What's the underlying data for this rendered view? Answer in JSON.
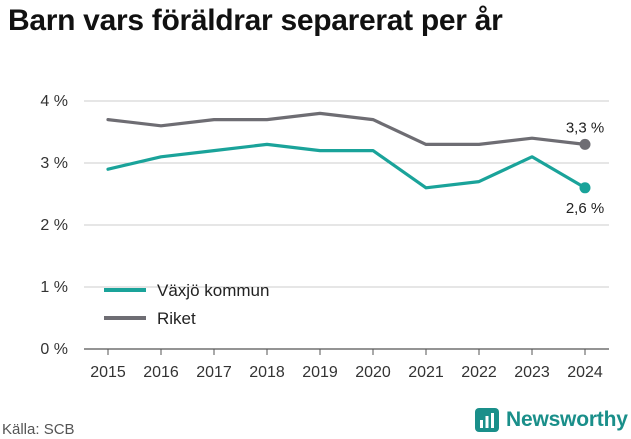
{
  "title": "Barn vars föräldrar separerat per år",
  "source": "Källa: SCB",
  "brand": "Newsworthy",
  "chart_data": {
    "type": "line",
    "title": "Barn vars föräldrar separerat per år",
    "x": [
      "2015",
      "2016",
      "2017",
      "2018",
      "2019",
      "2020",
      "2021",
      "2022",
      "2023",
      "2024"
    ],
    "ylim": [
      0,
      4
    ],
    "yticks": [
      0,
      1,
      2,
      3,
      4
    ],
    "ytick_labels": [
      "0 %",
      "1 %",
      "2 %",
      "3 %",
      "4 %"
    ],
    "grid": true,
    "legend_position": "bottom-left",
    "series": [
      {
        "name": "Växjö kommun",
        "color": "#1aa39a",
        "values": [
          2.9,
          3.1,
          3.2,
          3.3,
          3.2,
          3.2,
          2.6,
          2.7,
          3.1,
          2.6
        ],
        "end_label": "2,6 %"
      },
      {
        "name": "Riket",
        "color": "#6e6d73",
        "values": [
          3.7,
          3.6,
          3.7,
          3.7,
          3.8,
          3.7,
          3.3,
          3.3,
          3.4,
          3.3
        ],
        "end_label": "3,3 %"
      }
    ]
  }
}
